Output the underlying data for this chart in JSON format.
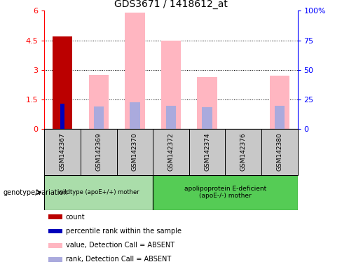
{
  "title": "GDS3671 / 1418612_at",
  "samples": [
    "GSM142367",
    "GSM142369",
    "GSM142370",
    "GSM142372",
    "GSM142374",
    "GSM142376",
    "GSM142380"
  ],
  "left_ylim": [
    0,
    6
  ],
  "left_yticks": [
    0,
    1.5,
    3,
    4.5,
    6
  ],
  "left_yticklabels": [
    "0",
    "1.5",
    "3",
    "4.5",
    "6"
  ],
  "right_ylim": [
    0,
    100
  ],
  "right_yticks": [
    0,
    25,
    50,
    75,
    100
  ],
  "right_yticklabels": [
    "0",
    "25",
    "50",
    "75",
    "100%"
  ],
  "count_values": [
    4.7,
    0,
    0,
    0,
    0,
    0,
    0
  ],
  "percentile_values": [
    1.3,
    0,
    0,
    0,
    0,
    0,
    0
  ],
  "pink_bar_values": [
    0,
    2.75,
    5.9,
    4.5,
    2.65,
    0,
    2.7
  ],
  "blue_bar_values": [
    0,
    1.15,
    1.35,
    1.2,
    1.1,
    0,
    1.2
  ],
  "pink_bar_color": "#FFB6C1",
  "blue_bar_color": "#AAAADD",
  "red_bar_color": "#BB0000",
  "blue_dot_color": "#0000BB",
  "group1_label": "wildtype (apoE+/+) mother",
  "group2_label": "apolipoprotein E-deficient\n(apoE-/-) mother",
  "group_label_prefix": "genotype/variation",
  "group1_color": "#AADDAA",
  "group2_color": "#55CC55",
  "bg_color": "#C8C8C8",
  "right_axis_color": "#0000FF",
  "dotted_yticks": [
    1.5,
    3.0,
    4.5
  ]
}
